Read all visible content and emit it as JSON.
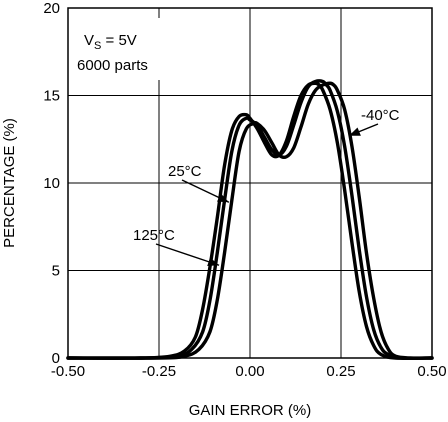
{
  "chart_data": {
    "type": "line",
    "title": "",
    "xlabel": "GAIN ERROR (%)",
    "ylabel": "PERCENTAGE (%)",
    "xlim": [
      -0.5,
      0.5
    ],
    "ylim": [
      0,
      20
    ],
    "grid": true,
    "x_ticks": [
      -0.5,
      -0.25,
      0.0,
      0.25,
      0.5
    ],
    "x_tick_labels": [
      "-0.50",
      "-0.25",
      "0.00",
      "0.25",
      "0.50"
    ],
    "y_ticks": [
      0,
      5,
      10,
      15,
      20
    ],
    "y_tick_labels": [
      "0",
      "5",
      "10",
      "15",
      "20"
    ],
    "conditions": {
      "vs_prefix": "V",
      "vs_sub": "S",
      "vs_suffix": " = 5V",
      "parts": "6000 parts"
    },
    "annotations": [
      "-40°C",
      "25°C",
      "125°C"
    ],
    "series": [
      {
        "label": "125°C",
        "x": [
          -0.5,
          -0.3,
          -0.22,
          -0.18,
          -0.15,
          -0.13,
          -0.11,
          -0.09,
          -0.07,
          -0.05,
          -0.03,
          -0.01,
          0.0,
          0.02,
          0.04,
          0.06,
          0.08,
          0.1,
          0.12,
          0.14,
          0.16,
          0.18,
          0.19,
          0.2,
          0.22,
          0.24,
          0.26,
          0.28,
          0.3,
          0.32,
          0.34,
          0.36,
          0.4,
          0.5
        ],
        "y": [
          0,
          0,
          0.1,
          0.4,
          1.2,
          2.8,
          5.2,
          8.0,
          11.0,
          13.0,
          13.8,
          13.9,
          13.7,
          13.1,
          12.3,
          11.6,
          11.6,
          12.4,
          13.8,
          15.0,
          15.6,
          15.7,
          15.6,
          15.3,
          14.2,
          12.3,
          9.6,
          6.6,
          3.8,
          1.8,
          0.7,
          0.2,
          0,
          0
        ]
      },
      {
        "label": "25°C",
        "x": [
          -0.5,
          -0.3,
          -0.2,
          -0.16,
          -0.13,
          -0.11,
          -0.09,
          -0.07,
          -0.05,
          -0.03,
          -0.01,
          0.0,
          0.02,
          0.04,
          0.06,
          0.08,
          0.1,
          0.12,
          0.14,
          0.16,
          0.18,
          0.2,
          0.21,
          0.22,
          0.24,
          0.26,
          0.28,
          0.3,
          0.32,
          0.34,
          0.36,
          0.38,
          0.42,
          0.5
        ],
        "y": [
          0,
          0,
          0.1,
          0.5,
          1.5,
          3.3,
          6.0,
          9.0,
          11.8,
          13.3,
          13.7,
          13.6,
          13.3,
          12.6,
          11.9,
          11.6,
          12.1,
          13.3,
          14.6,
          15.5,
          15.8,
          15.8,
          15.6,
          15.3,
          14.1,
          12.1,
          9.3,
          6.2,
          3.5,
          1.6,
          0.6,
          0.2,
          0,
          0
        ]
      },
      {
        "label": "-40°C",
        "x": [
          -0.5,
          -0.25,
          -0.18,
          -0.14,
          -0.11,
          -0.09,
          -0.07,
          -0.05,
          -0.03,
          -0.01,
          0.01,
          0.02,
          0.04,
          0.06,
          0.08,
          0.1,
          0.12,
          0.14,
          0.16,
          0.18,
          0.2,
          0.22,
          0.23,
          0.24,
          0.26,
          0.28,
          0.3,
          0.32,
          0.34,
          0.36,
          0.38,
          0.4,
          0.44,
          0.5
        ],
        "y": [
          0,
          0,
          0.1,
          0.5,
          1.5,
          3.3,
          6.0,
          9.0,
          11.8,
          13.1,
          13.4,
          13.4,
          13.0,
          12.3,
          11.6,
          11.5,
          12.0,
          13.2,
          14.5,
          15.3,
          15.6,
          15.7,
          15.6,
          15.3,
          14.2,
          12.1,
          9.2,
          6.0,
          3.4,
          1.5,
          0.5,
          0.1,
          0,
          0
        ]
      }
    ]
  }
}
